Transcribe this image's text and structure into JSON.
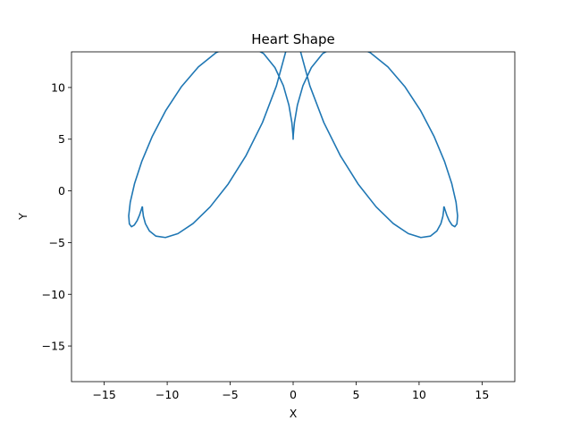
{
  "chart_data": {
    "type": "line",
    "title": "Heart Shape",
    "xlabel": "X",
    "ylabel": "Y",
    "xlim": [
      -17.6,
      17.6
    ],
    "ylim": [
      -18.45,
      13.45
    ],
    "xticks": [
      -15,
      -10,
      -5,
      0,
      5,
      10,
      15
    ],
    "yticks": [
      -15,
      -10,
      -5,
      0,
      5,
      10
    ],
    "xtick_labels": [
      "−15",
      "−10",
      "−5",
      "0",
      "5",
      "10",
      "15"
    ],
    "ytick_labels": [
      "−15",
      "−10",
      "−5",
      "0",
      "5",
      "10"
    ],
    "grid": false,
    "series": [
      {
        "color": "#1f77b4",
        "x": [
          0.0,
          0.013,
          0.101,
          0.336,
          0.775,
          1.445,
          2.348,
          3.461,
          4.739,
          6.119,
          7.527,
          8.888,
          10.128,
          11.184,
          12.014,
          12.596,
          12.935,
          13.057,
          13.005,
          12.838,
          12.614,
          12.385,
          12.192,
          12.06,
          11.99,
          11.966,
          11.949,
          11.89,
          11.731,
          11.415,
          10.894,
          10.139,
          9.147,
          7.945,
          6.588,
          5.156,
          3.74,
          2.435,
          1.328,
          0.486,
          0.0,
          -0.486,
          -1.328,
          -2.435,
          -3.74,
          -5.156,
          -6.588,
          -7.945,
          -9.147,
          -10.139,
          -10.894,
          -11.415,
          -11.731,
          -11.89,
          -11.949,
          -11.966,
          -11.99,
          -12.06,
          -12.192,
          -12.385,
          -12.614,
          -12.838,
          -13.005,
          -13.057,
          -12.935,
          -12.596,
          -12.014,
          -11.184,
          -10.128,
          -8.888,
          -7.527,
          -6.119,
          -4.739,
          -3.461,
          -2.348,
          -1.445,
          -0.775,
          -0.336,
          -0.101,
          -0.013,
          0.0
        ],
        "y": [
          5.0,
          5.42,
          6.598,
          8.289,
          10.172,
          11.928,
          13.284,
          14.04,
          14.08,
          13.378,
          11.993,
          10.055,
          7.748,
          5.281,
          2.866,
          0.694,
          -1.101,
          -2.414,
          -3.196,
          -3.465,
          -3.308,
          -2.868,
          -2.318,
          -1.833,
          -1.553,
          -1.564,
          -1.883,
          -2.457,
          -3.172,
          -3.871,
          -4.375,
          -4.509,
          -4.133,
          -3.155,
          -1.544,
          0.67,
          3.418,
          6.615,
          10.159,
          13.924,
          17.0,
          13.924,
          10.159,
          6.615,
          3.418,
          0.67,
          -1.544,
          -3.155,
          -4.133,
          -4.509,
          -4.375,
          -3.871,
          -3.172,
          -2.457,
          -1.883,
          -1.564,
          -1.553,
          -1.833,
          -2.318,
          -2.868,
          -3.308,
          -3.465,
          -3.196,
          -2.414,
          -1.101,
          0.694,
          2.866,
          5.281,
          7.748,
          10.055,
          11.993,
          13.378,
          14.08,
          14.04,
          13.284,
          11.928,
          10.172,
          8.289,
          6.598,
          5.42,
          5.0
        ]
      }
    ]
  }
}
